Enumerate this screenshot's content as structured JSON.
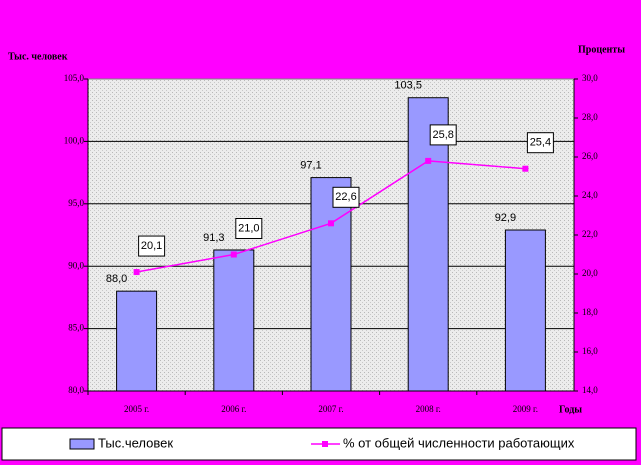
{
  "chart_data": {
    "type": "bar",
    "y_label": "Тыс. человек",
    "y2_label": "Проценты",
    "x_label": "Годы",
    "categories": [
      "2005 г.",
      "2006 г.",
      "2007 г.",
      "2008 г.",
      "2009 г."
    ],
    "series": [
      {
        "name": "Тыс.человек",
        "type": "bar",
        "color": "#9999ff",
        "values": [
          88.0,
          91.3,
          97.1,
          103.5,
          92.9
        ],
        "value_labels": [
          "88,0",
          "91,3",
          "97,1",
          "103,5",
          "92,9"
        ]
      },
      {
        "name": "% от общей численности работающих",
        "type": "line",
        "axis": "y2",
        "color": "#ff00ff",
        "values": [
          20.1,
          21.0,
          22.6,
          25.8,
          25.4
        ],
        "value_labels": [
          "20,1",
          "21,0",
          "22,6",
          "25,8",
          "25,4"
        ]
      }
    ],
    "ylim": [
      80,
      105
    ],
    "yticks": [
      {
        "value": 80,
        "label": "80,0"
      },
      {
        "value": 85,
        "label": "85,0"
      },
      {
        "value": 90,
        "label": "90,0"
      },
      {
        "value": 95,
        "label": "95,0"
      },
      {
        "value": 100,
        "label": "100,0"
      },
      {
        "value": 105,
        "label": "105,0"
      }
    ],
    "y2lim": [
      14,
      30
    ],
    "y2ticks": [
      {
        "value": 14,
        "label": "14,0"
      },
      {
        "value": 16,
        "label": "16,0"
      },
      {
        "value": 18,
        "label": "18,0"
      },
      {
        "value": 20,
        "label": "20,0"
      },
      {
        "value": 22,
        "label": "22,0"
      },
      {
        "value": 24,
        "label": "24,0"
      },
      {
        "value": 26,
        "label": "26,0"
      },
      {
        "value": 28,
        "label": "28,0"
      },
      {
        "value": 30,
        "label": "30,0"
      }
    ],
    "grid": true,
    "legend": "bottom"
  }
}
